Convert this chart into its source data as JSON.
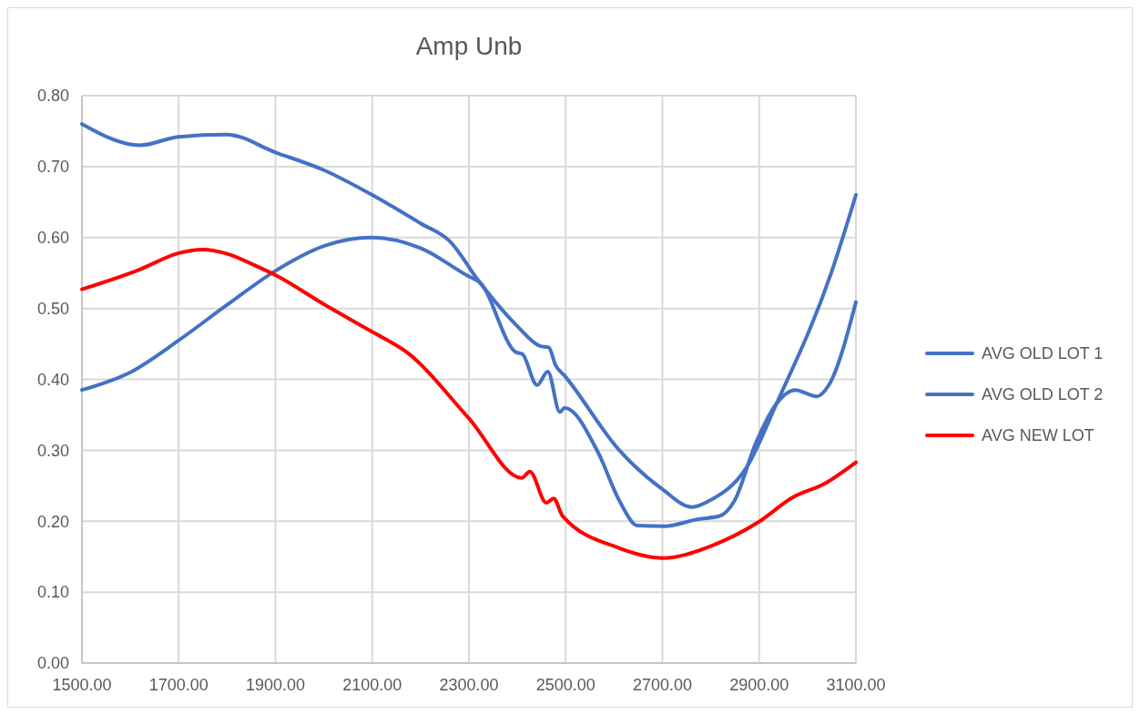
{
  "chart_data": {
    "type": "line",
    "title": "Amp Unb",
    "legend": "right",
    "grid": true,
    "line_style": "solid",
    "marker": "none",
    "xlim": [
      1500,
      3100
    ],
    "xticks": [
      {
        "value": 1500,
        "label": "1500.00"
      },
      {
        "value": 1700,
        "label": "1700.00"
      },
      {
        "value": 1900,
        "label": "1900.00"
      },
      {
        "value": 2100,
        "label": "2100.00"
      },
      {
        "value": 2300,
        "label": "2300.00"
      },
      {
        "value": 2500,
        "label": "2500.00"
      },
      {
        "value": 2700,
        "label": "2700.00"
      },
      {
        "value": 2900,
        "label": "2900.00"
      },
      {
        "value": 3100,
        "label": "3100.00"
      }
    ],
    "ylim": [
      0,
      0.8
    ],
    "yticks": [
      {
        "value": 0,
        "label": "0.00"
      },
      {
        "value": 0.1,
        "label": "0.10"
      },
      {
        "value": 0.2,
        "label": "0.20"
      },
      {
        "value": 0.3,
        "label": "0.30"
      },
      {
        "value": 0.4,
        "label": "0.40"
      },
      {
        "value": 0.5,
        "label": "0.50"
      },
      {
        "value": 0.6,
        "label": "0.60"
      },
      {
        "value": 0.7,
        "label": "0.70"
      },
      {
        "value": 0.8,
        "label": "0.80"
      }
    ],
    "series": [
      {
        "name": "AVG OLD LOT 1",
        "color": "#4472c4",
        "x": [
          1500,
          1620,
          1700,
          1800,
          1900,
          2000,
          2100,
          2200,
          2260,
          2322,
          2400,
          2447,
          2465,
          2479,
          2498,
          2611,
          2700,
          2761,
          2800,
          2874,
          2936,
          3049,
          3100
        ],
        "values": [
          0.76,
          0.73,
          0.742,
          0.745,
          0.72,
          0.695,
          0.66,
          0.62,
          0.595,
          0.537,
          0.475,
          0.447,
          0.445,
          0.42,
          0.405,
          0.3,
          0.245,
          0.22,
          0.23,
          0.276,
          0.366,
          0.55,
          0.66
        ]
      },
      {
        "name": "AVG OLD LOT 2",
        "color": "#4472c4",
        "x": [
          1500,
          1600,
          1700,
          1800,
          1900,
          2000,
          2100,
          2200,
          2300,
          2322,
          2398,
          2410,
          2441,
          2463,
          2488,
          2498,
          2567,
          2611,
          2648,
          2704,
          2774,
          2817,
          2849,
          2893,
          2936,
          2974,
          3019,
          3044,
          3100
        ],
        "values": [
          0.385,
          0.41,
          0.455,
          0.505,
          0.553,
          0.588,
          0.6,
          0.585,
          0.545,
          0.537,
          0.438,
          0.436,
          0.392,
          0.411,
          0.354,
          0.36,
          0.297,
          0.229,
          0.194,
          0.193,
          0.203,
          0.207,
          0.229,
          0.31,
          0.366,
          0.385,
          0.376,
          0.392,
          0.509
        ]
      },
      {
        "name": "AVG NEW LOT",
        "color": "#ff0000",
        "x": [
          1500,
          1620,
          1700,
          1750,
          1800,
          1850,
          1900,
          2000,
          2100,
          2172,
          2300,
          2409,
          2426,
          2460,
          2475,
          2494,
          2611,
          2701,
          2800,
          2899,
          2968,
          3038,
          3100
        ],
        "values": [
          0.527,
          0.555,
          0.578,
          0.583,
          0.577,
          0.563,
          0.547,
          0.506,
          0.467,
          0.438,
          0.345,
          0.261,
          0.27,
          0.226,
          0.232,
          0.207,
          0.162,
          0.148,
          0.165,
          0.199,
          0.233,
          0.254,
          0.283
        ]
      }
    ]
  }
}
